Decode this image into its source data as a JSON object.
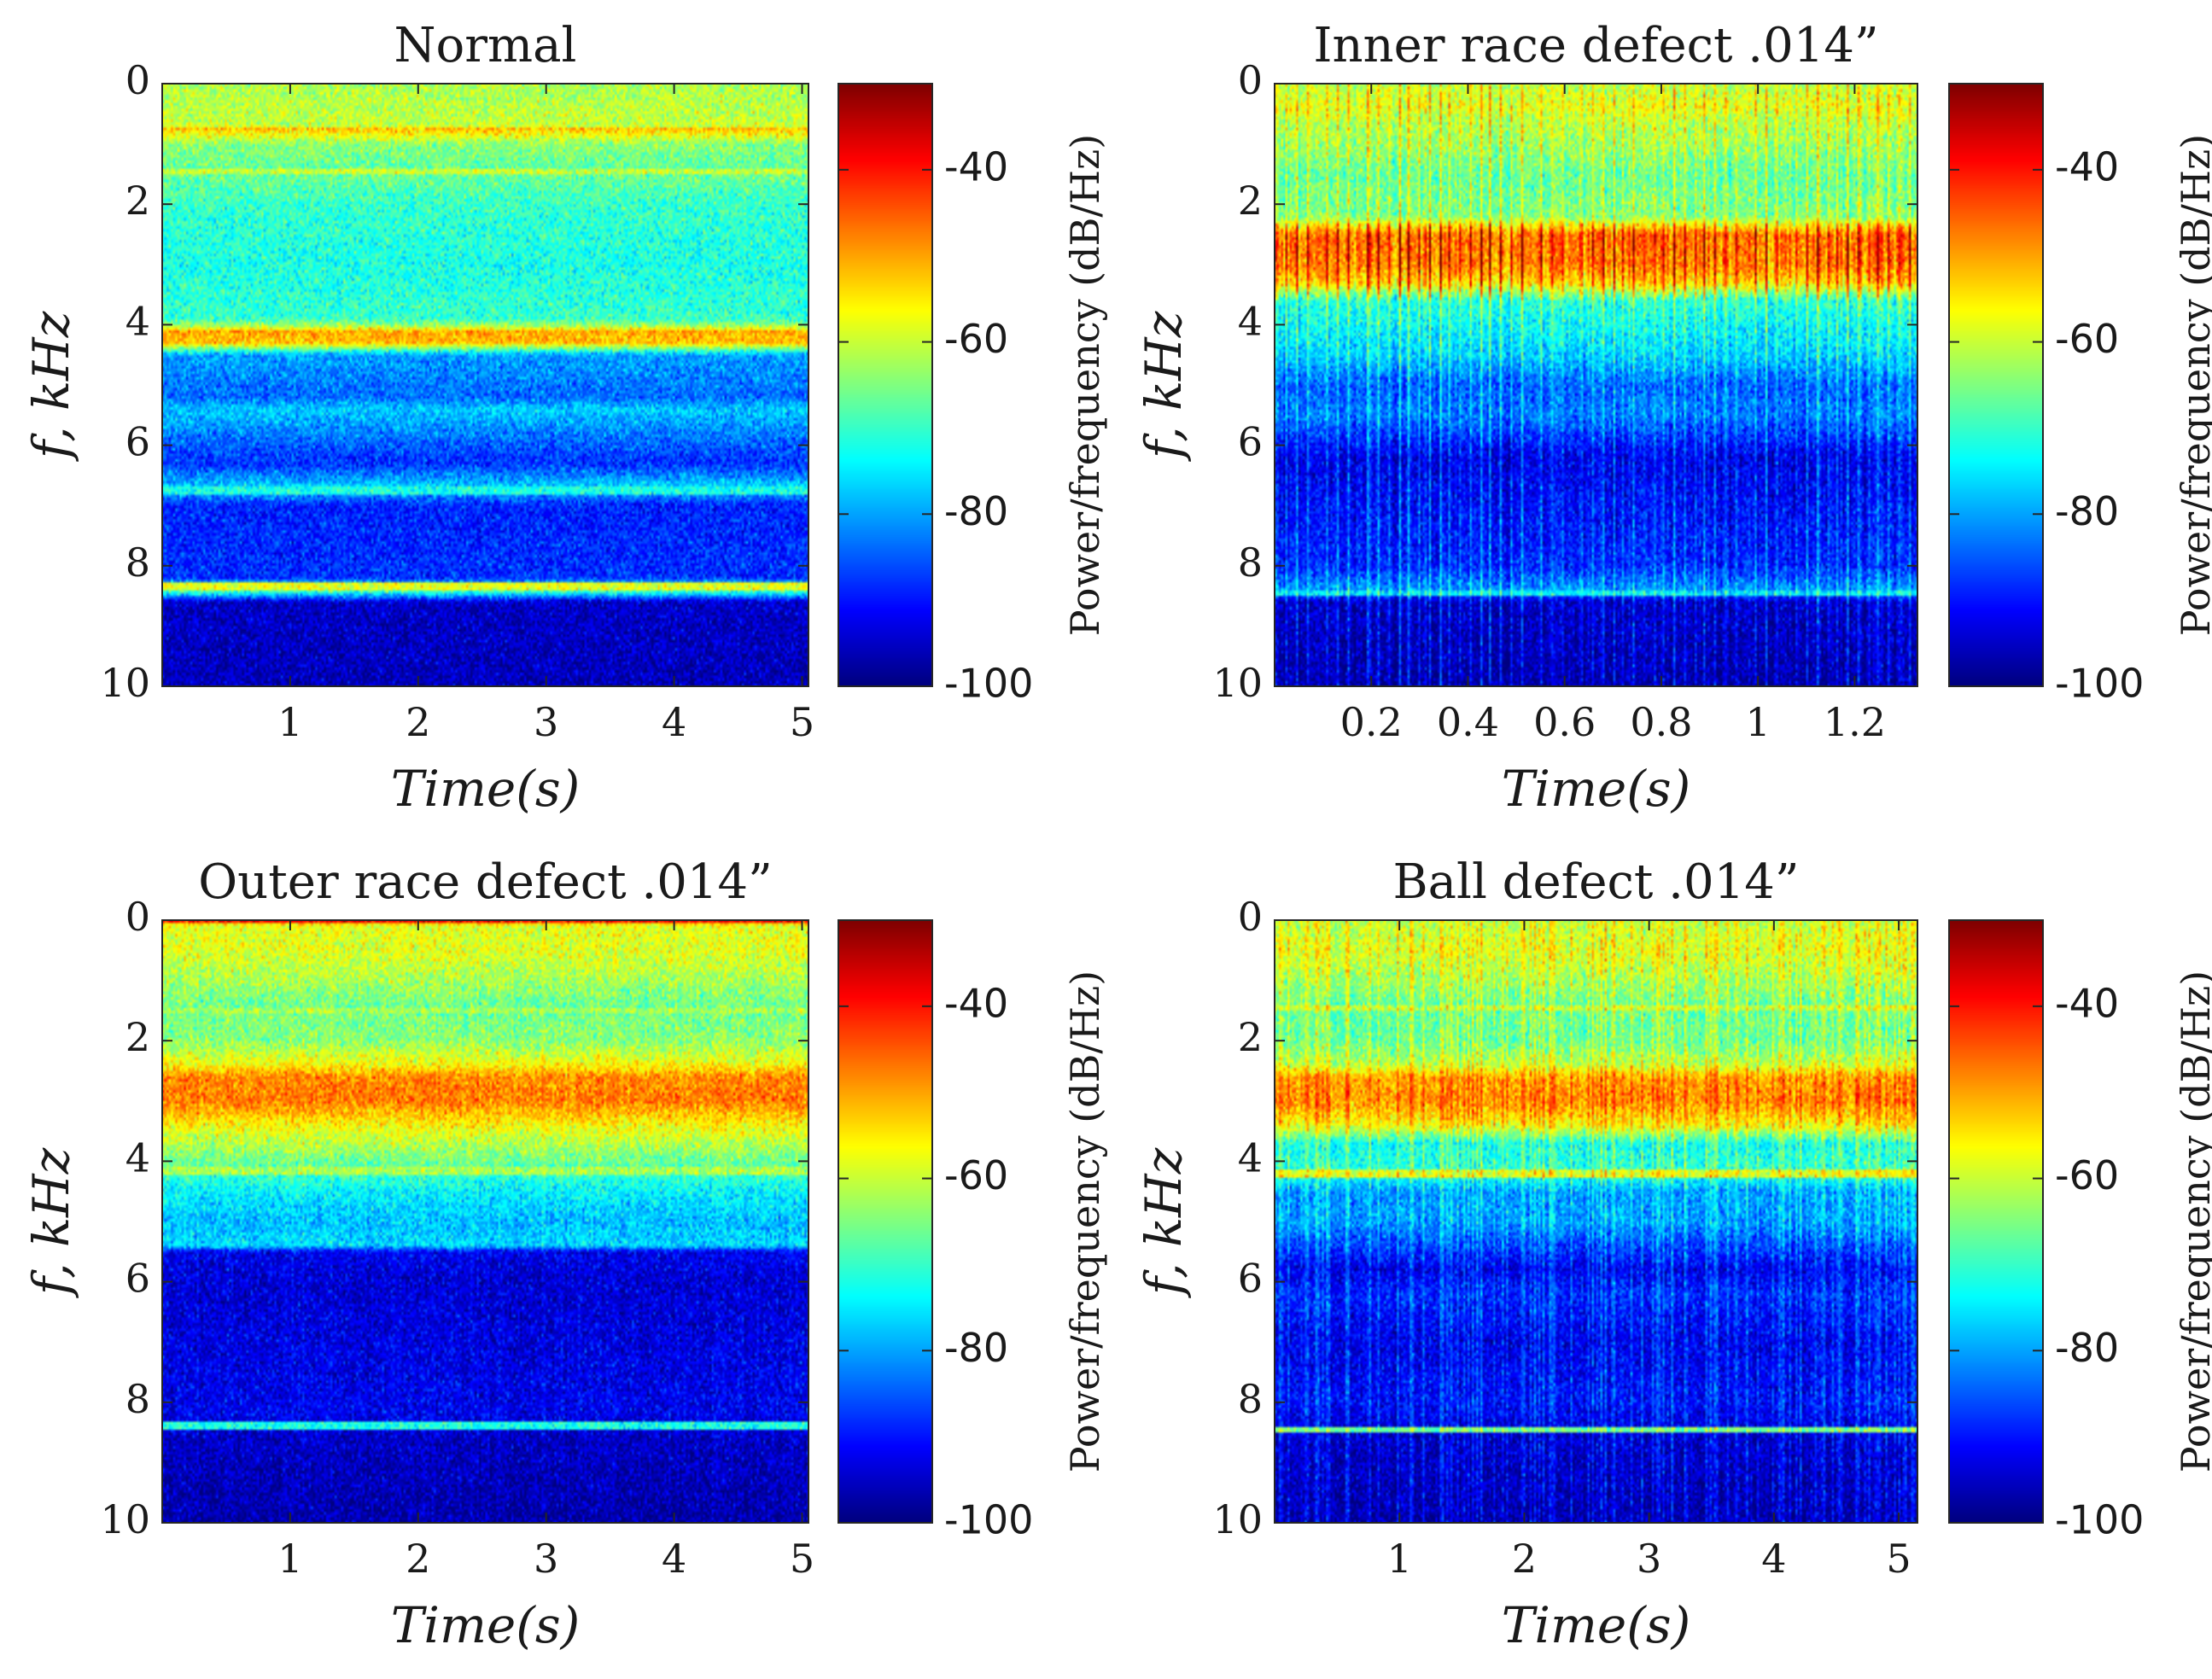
{
  "figure": {
    "colormap": "jet",
    "colorbar_ticks": [
      -40,
      -60,
      -80,
      -100
    ],
    "colorbar_label": "Power/frequency (dB/Hz)"
  },
  "chart_data": [
    {
      "type": "heatmap",
      "subtype": "spectrogram",
      "title": "Normal",
      "xlabel": "Time(s)",
      "ylabel": "f, kHz",
      "xlim": [
        0,
        5.05
      ],
      "ylim": [
        0,
        10
      ],
      "y_reversed": true,
      "xticks": [
        1,
        2,
        3,
        4,
        5
      ],
      "xtick_labels": [
        "1",
        "2",
        "3",
        "4",
        "5"
      ],
      "yticks": [
        0,
        2,
        4,
        6,
        8,
        10
      ],
      "ytick_labels": [
        "0",
        "2",
        "4",
        "6",
        "8",
        "10"
      ],
      "clim": [
        -100,
        -30
      ],
      "colorbar_ticks": [
        -40,
        -60,
        -80,
        -100
      ],
      "colorbar_label": "Power/frequency (dB/Hz)",
      "profile_f_khz": [
        0,
        0.7,
        0.75,
        1.0,
        1.4,
        1.5,
        2.0,
        3.0,
        3.9,
        4.05,
        4.1,
        4.3,
        4.5,
        5.2,
        5.4,
        6.0,
        6.3,
        6.7,
        7.0,
        8.2,
        8.4,
        8.6,
        10
      ],
      "profile_db": [
        -62,
        -60,
        -52,
        -64,
        -67,
        -66,
        -70,
        -72,
        -70,
        -60,
        -50,
        -52,
        -80,
        -84,
        -77,
        -85,
        -88,
        -76,
        -89,
        -88,
        -66,
        -95,
        -96
      ],
      "narrow_lines": [
        {
          "f_khz": 1.45,
          "db": -60
        },
        {
          "f_khz": 6.75,
          "db": -72
        },
        {
          "f_khz": 8.35,
          "db": -58
        }
      ],
      "time_modulation": "none"
    },
    {
      "type": "heatmap",
      "subtype": "spectrogram",
      "title": "Inner race defect .014”",
      "xlabel": "Time(s)",
      "ylabel": "f, kHz",
      "xlim": [
        0,
        1.33
      ],
      "ylim": [
        0,
        10
      ],
      "y_reversed": true,
      "xticks": [
        0.2,
        0.4,
        0.6,
        0.8,
        1,
        1.2
      ],
      "xtick_labels": [
        "0.2",
        "0.4",
        "0.6",
        "0.8",
        "1",
        "1.2"
      ],
      "yticks": [
        0,
        2,
        4,
        6,
        8,
        10
      ],
      "ytick_labels": [
        "0",
        "2",
        "4",
        "6",
        "8",
        "10"
      ],
      "clim": [
        -100,
        -30
      ],
      "colorbar_ticks": [
        -40,
        -60,
        -80,
        -100
      ],
      "colorbar_label": "Power/frequency (dB/Hz)",
      "profile_f_khz": [
        0,
        0.4,
        0.6,
        1.0,
        1.5,
        2.2,
        2.5,
        3.0,
        3.3,
        3.6,
        4.5,
        5.0,
        5.5,
        6.2,
        7.0,
        8.0,
        8.4,
        8.6,
        10
      ],
      "profile_db": [
        -60,
        -57,
        -60,
        -62,
        -66,
        -64,
        -45,
        -46,
        -52,
        -70,
        -76,
        -84,
        -82,
        -92,
        -90,
        -88,
        -80,
        -94,
        -96
      ],
      "narrow_lines": [
        {
          "f_khz": 8.45,
          "db": -74
        }
      ],
      "time_modulation": "impulses"
    },
    {
      "type": "heatmap",
      "subtype": "spectrogram",
      "title": "Outer race defect .014”",
      "xlabel": "Time(s)",
      "ylabel": "f, kHz",
      "xlim": [
        0,
        5.05
      ],
      "ylim": [
        0,
        10
      ],
      "y_reversed": true,
      "xticks": [
        1,
        2,
        3,
        4,
        5
      ],
      "xtick_labels": [
        "1",
        "2",
        "3",
        "4",
        "5"
      ],
      "yticks": [
        0,
        2,
        4,
        6,
        8,
        10
      ],
      "ytick_labels": [
        "0",
        "2",
        "4",
        "6",
        "8",
        "10"
      ],
      "clim": [
        -100,
        -30
      ],
      "colorbar_ticks": [
        -40,
        -60,
        -80,
        -100
      ],
      "colorbar_label": "Power/frequency (dB/Hz)",
      "profile_f_khz": [
        0,
        0.08,
        0.5,
        1.0,
        1.4,
        2.0,
        2.4,
        2.6,
        3.0,
        3.4,
        4.0,
        4.5,
        5.0,
        5.4,
        5.5,
        6.0,
        7.0,
        8.2,
        8.6,
        10
      ],
      "profile_db": [
        -32,
        -58,
        -58,
        -62,
        -66,
        -64,
        -56,
        -48,
        -47,
        -56,
        -66,
        -74,
        -78,
        -76,
        -92,
        -94,
        -93,
        -92,
        -95,
        -97
      ],
      "narrow_lines": [
        {
          "f_khz": 1.5,
          "db": -62
        },
        {
          "f_khz": 4.15,
          "db": -62
        },
        {
          "f_khz": 8.4,
          "db": -72
        }
      ],
      "time_modulation": "weak"
    },
    {
      "type": "heatmap",
      "subtype": "spectrogram",
      "title": "Ball defect .014”",
      "xlabel": "Time(s)",
      "ylabel": "f, kHz",
      "xlim": [
        0,
        5.15
      ],
      "ylim": [
        0,
        10
      ],
      "y_reversed": true,
      "xticks": [
        1,
        2,
        3,
        4,
        5
      ],
      "xtick_labels": [
        "1",
        "2",
        "3",
        "4",
        "5"
      ],
      "yticks": [
        0,
        2,
        4,
        6,
        8,
        10
      ],
      "ytick_labels": [
        "0",
        "2",
        "4",
        "6",
        "8",
        "10"
      ],
      "clim": [
        -100,
        -30
      ],
      "colorbar_ticks": [
        -40,
        -60,
        -80,
        -100
      ],
      "colorbar_label": "Power/frequency (dB/Hz)",
      "profile_f_khz": [
        0,
        0.5,
        1.0,
        1.4,
        2.0,
        2.4,
        2.6,
        3.0,
        3.4,
        3.7,
        4.2,
        4.5,
        5.0,
        5.8,
        6.2,
        7.0,
        8.0,
        8.6,
        10
      ],
      "profile_db": [
        -60,
        -58,
        -62,
        -66,
        -66,
        -60,
        -50,
        -48,
        -56,
        -72,
        -70,
        -80,
        -80,
        -92,
        -88,
        -92,
        -90,
        -94,
        -96
      ],
      "narrow_lines": [
        {
          "f_khz": 1.45,
          "db": -60
        },
        {
          "f_khz": 4.2,
          "db": -58
        },
        {
          "f_khz": 8.45,
          "db": -66
        }
      ],
      "time_modulation": "streaks"
    }
  ]
}
